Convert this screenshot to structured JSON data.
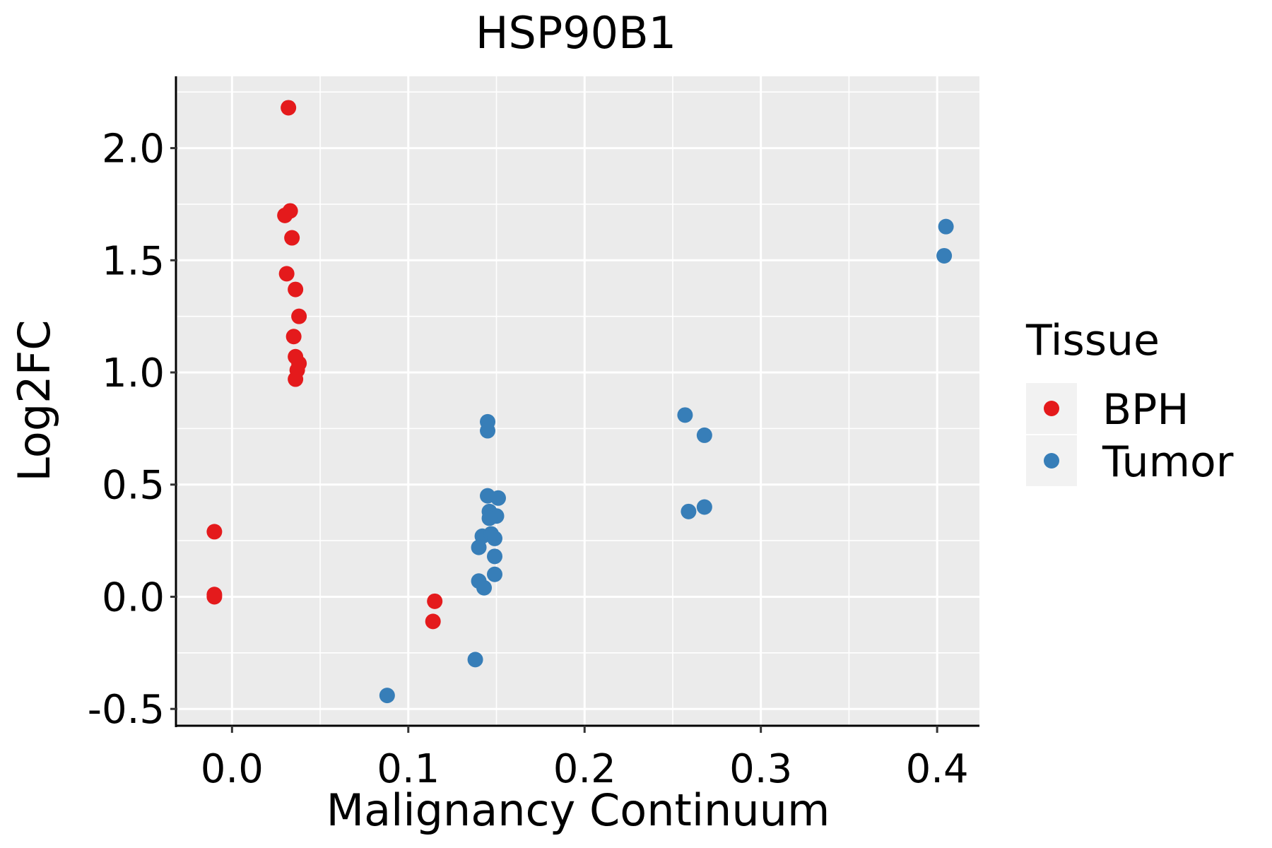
{
  "chart_data": {
    "type": "scatter",
    "title": "HSP90B1",
    "xlabel": "Malignancy Continuum",
    "ylabel": "Log2FC",
    "xlim": [
      -0.031,
      0.424
    ],
    "ylim": [
      -0.575,
      2.32
    ],
    "xticks": [
      0.0,
      0.1,
      0.2,
      0.3,
      0.4
    ],
    "xtick_labels": [
      "0.0",
      "0.1",
      "0.2",
      "0.3",
      "0.4"
    ],
    "yticks": [
      -0.5,
      0.0,
      0.5,
      1.0,
      1.5,
      2.0
    ],
    "ytick_labels": [
      "-0.5",
      "0.0",
      "0.5",
      "1.0",
      "1.5",
      "2.0"
    ],
    "grid": true,
    "legend": {
      "title": "Tissue",
      "position": "right"
    },
    "series": [
      {
        "name": "BPH",
        "color": "#E41A1C",
        "points": [
          {
            "x": 0.032,
            "y": 2.18
          },
          {
            "x": 0.033,
            "y": 1.72
          },
          {
            "x": 0.03,
            "y": 1.7
          },
          {
            "x": 0.034,
            "y": 1.6
          },
          {
            "x": 0.031,
            "y": 1.44
          },
          {
            "x": 0.036,
            "y": 1.37
          },
          {
            "x": 0.038,
            "y": 1.25
          },
          {
            "x": 0.035,
            "y": 1.16
          },
          {
            "x": 0.036,
            "y": 1.07
          },
          {
            "x": 0.038,
            "y": 1.04
          },
          {
            "x": 0.037,
            "y": 1.01
          },
          {
            "x": 0.036,
            "y": 0.97
          },
          {
            "x": -0.01,
            "y": 0.29
          },
          {
            "x": -0.01,
            "y": 0.01
          },
          {
            "x": -0.01,
            "y": 0.0
          },
          {
            "x": 0.115,
            "y": -0.02
          },
          {
            "x": 0.114,
            "y": -0.11
          }
        ]
      },
      {
        "name": "Tumor",
        "color": "#377EB8",
        "points": [
          {
            "x": 0.145,
            "y": 0.78
          },
          {
            "x": 0.145,
            "y": 0.74
          },
          {
            "x": 0.145,
            "y": 0.45
          },
          {
            "x": 0.151,
            "y": 0.44
          },
          {
            "x": 0.146,
            "y": 0.38
          },
          {
            "x": 0.15,
            "y": 0.36
          },
          {
            "x": 0.146,
            "y": 0.35
          },
          {
            "x": 0.142,
            "y": 0.27
          },
          {
            "x": 0.147,
            "y": 0.28
          },
          {
            "x": 0.149,
            "y": 0.26
          },
          {
            "x": 0.14,
            "y": 0.22
          },
          {
            "x": 0.149,
            "y": 0.18
          },
          {
            "x": 0.149,
            "y": 0.1
          },
          {
            "x": 0.14,
            "y": 0.07
          },
          {
            "x": 0.143,
            "y": 0.04
          },
          {
            "x": 0.138,
            "y": -0.28
          },
          {
            "x": 0.088,
            "y": -0.44
          },
          {
            "x": 0.257,
            "y": 0.81
          },
          {
            "x": 0.268,
            "y": 0.72
          },
          {
            "x": 0.268,
            "y": 0.4
          },
          {
            "x": 0.259,
            "y": 0.38
          },
          {
            "x": 0.405,
            "y": 1.65
          },
          {
            "x": 0.404,
            "y": 1.52
          }
        ]
      }
    ]
  }
}
